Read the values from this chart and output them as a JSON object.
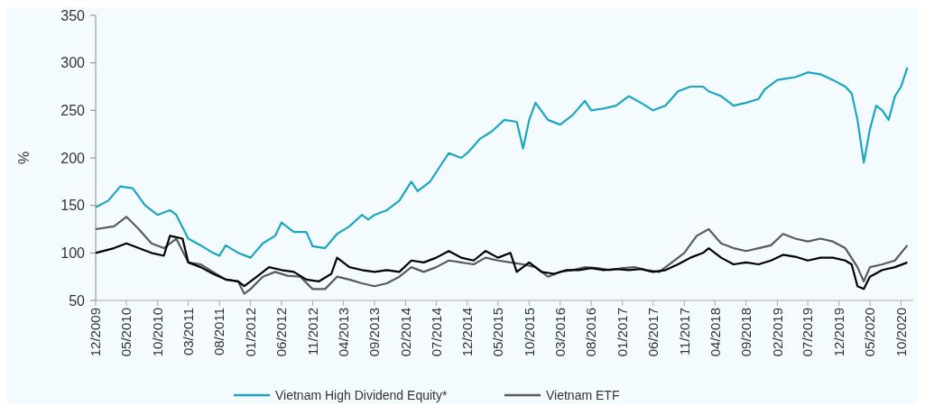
{
  "chart_data": {
    "type": "line",
    "ylabel": "%",
    "ylim": [
      50,
      350
    ],
    "yticks": [
      50,
      100,
      150,
      200,
      250,
      300,
      350
    ],
    "xlim": [
      "2009-12-01",
      "2020-11-30"
    ],
    "xticks": [
      {
        "value": "2009-12",
        "label": "12/2009"
      },
      {
        "value": "2010-05",
        "label": "05/2010"
      },
      {
        "value": "2010-10",
        "label": "10/2010"
      },
      {
        "value": "2011-03",
        "label": "03/2011"
      },
      {
        "value": "2011-08",
        "label": "08/2011"
      },
      {
        "value": "2012-01",
        "label": "01/2012"
      },
      {
        "value": "2012-06",
        "label": "06/2012"
      },
      {
        "value": "2012-11",
        "label": "11/2012"
      },
      {
        "value": "2013-04",
        "label": "04/2013"
      },
      {
        "value": "2013-09",
        "label": "09/2013"
      },
      {
        "value": "2014-02",
        "label": "02/2014"
      },
      {
        "value": "2014-07",
        "label": "07/2014"
      },
      {
        "value": "2014-12",
        "label": "12/2014"
      },
      {
        "value": "2015-05",
        "label": "05/2015"
      },
      {
        "value": "2015-10",
        "label": "10/2015"
      },
      {
        "value": "2016-03",
        "label": "03/2016"
      },
      {
        "value": "2016-08",
        "label": "08/2016"
      },
      {
        "value": "2017-01",
        "label": "01/2017"
      },
      {
        "value": "2017-06",
        "label": "06/2017"
      },
      {
        "value": "2017-11",
        "label": "11/2017"
      },
      {
        "value": "2018-04",
        "label": "04/2018"
      },
      {
        "value": "2018-09",
        "label": "09/2018"
      },
      {
        "value": "2019-02",
        "label": "02/2019"
      },
      {
        "value": "2019-07",
        "label": "07/2019"
      },
      {
        "value": "2019-12",
        "label": "12/2019"
      },
      {
        "value": "2020-05",
        "label": "05/2020"
      },
      {
        "value": "2020-10",
        "label": "10/2020"
      }
    ],
    "grid": false,
    "legend": "bottom",
    "line_style": "solid",
    "marker": "none",
    "series": [
      {
        "name": "Vietnam High Dividend Equity*",
        "color": "#1aa6c0",
        "x": [
          "2009-12",
          "2010-02",
          "2010-04",
          "2010-06",
          "2010-08",
          "2010-10",
          "2010-12",
          "2011-01",
          "2011-03",
          "2011-05",
          "2011-07",
          "2011-08",
          "2011-09",
          "2011-11",
          "2012-01",
          "2012-03",
          "2012-05",
          "2012-06",
          "2012-08",
          "2012-10",
          "2012-11",
          "2013-01",
          "2013-03",
          "2013-05",
          "2013-07",
          "2013-08",
          "2013-09",
          "2013-11",
          "2014-01",
          "2014-03",
          "2014-04",
          "2014-06",
          "2014-08",
          "2014-09",
          "2014-11",
          "2014-12",
          "2015-02",
          "2015-04",
          "2015-06",
          "2015-08",
          "2015-09",
          "2015-10",
          "2015-11",
          "2016-01",
          "2016-03",
          "2016-05",
          "2016-07",
          "2016-08",
          "2016-10",
          "2016-12",
          "2017-02",
          "2017-04",
          "2017-06",
          "2017-08",
          "2017-10",
          "2017-12",
          "2018-02",
          "2018-03",
          "2018-05",
          "2018-07",
          "2018-09",
          "2018-11",
          "2018-12",
          "2019-02",
          "2019-05",
          "2019-07",
          "2019-09",
          "2019-11",
          "2020-01",
          "2020-02",
          "2020-03",
          "2020-04",
          "2020-05",
          "2020-06",
          "2020-07",
          "2020-08",
          "2020-09",
          "2020-10",
          "2020-11"
        ],
        "values": [
          148,
          155,
          170,
          168,
          150,
          140,
          145,
          140,
          115,
          108,
          100,
          97,
          108,
          100,
          95,
          110,
          118,
          132,
          122,
          122,
          107,
          105,
          120,
          128,
          140,
          135,
          140,
          145,
          155,
          175,
          165,
          175,
          195,
          205,
          200,
          205,
          220,
          228,
          240,
          238,
          210,
          240,
          258,
          240,
          235,
          245,
          260,
          250,
          252,
          255,
          265,
          258,
          250,
          255,
          270,
          275,
          275,
          270,
          265,
          255,
          258,
          262,
          272,
          282,
          285,
          290,
          288,
          282,
          275,
          268,
          240,
          195,
          230,
          255,
          250,
          240,
          265,
          275,
          295
        ]
      },
      {
        "name": "Vietnam ETF",
        "color": "#5a5a5a",
        "x": [
          "2009-12",
          "2010-03",
          "2010-05",
          "2010-07",
          "2010-09",
          "2010-11",
          "2011-01",
          "2011-03",
          "2011-05",
          "2011-07",
          "2011-09",
          "2011-11",
          "2011-12",
          "2012-01",
          "2012-03",
          "2012-05",
          "2012-07",
          "2012-09",
          "2012-11",
          "2013-01",
          "2013-03",
          "2013-05",
          "2013-07",
          "2013-09",
          "2013-11",
          "2014-01",
          "2014-03",
          "2014-05",
          "2014-07",
          "2014-09",
          "2014-11",
          "2015-01",
          "2015-03",
          "2015-05",
          "2015-07",
          "2015-09",
          "2015-11",
          "2016-01",
          "2016-03",
          "2016-05",
          "2016-07",
          "2016-09",
          "2016-11",
          "2017-01",
          "2017-03",
          "2017-05",
          "2017-07",
          "2017-09",
          "2017-11",
          "2018-01",
          "2018-03",
          "2018-05",
          "2018-07",
          "2018-09",
          "2018-11",
          "2019-01",
          "2019-03",
          "2019-05",
          "2019-07",
          "2019-09",
          "2019-11",
          "2020-01",
          "2020-03",
          "2020-04",
          "2020-05",
          "2020-07",
          "2020-09",
          "2020-11"
        ],
        "values": [
          125,
          128,
          138,
          125,
          110,
          105,
          115,
          90,
          88,
          80,
          72,
          70,
          57,
          62,
          75,
          80,
          76,
          75,
          62,
          62,
          75,
          72,
          68,
          65,
          68,
          75,
          85,
          80,
          85,
          92,
          90,
          88,
          95,
          92,
          90,
          88,
          85,
          75,
          80,
          82,
          85,
          84,
          82,
          84,
          85,
          82,
          80,
          90,
          100,
          118,
          125,
          110,
          105,
          102,
          105,
          108,
          120,
          115,
          112,
          115,
          112,
          105,
          85,
          70,
          85,
          88,
          92,
          108
        ]
      },
      {
        "color": "#000000",
        "x": [
          "2009-12",
          "2010-03",
          "2010-05",
          "2010-07",
          "2010-09",
          "2010-11",
          "2010-12",
          "2011-02",
          "2011-03",
          "2011-05",
          "2011-07",
          "2011-09",
          "2011-11",
          "2011-12",
          "2012-02",
          "2012-04",
          "2012-06",
          "2012-08",
          "2012-10",
          "2012-12",
          "2013-02",
          "2013-03",
          "2013-05",
          "2013-07",
          "2013-09",
          "2013-11",
          "2014-01",
          "2014-03",
          "2014-05",
          "2014-07",
          "2014-09",
          "2014-11",
          "2015-01",
          "2015-03",
          "2015-05",
          "2015-07",
          "2015-08",
          "2015-10",
          "2015-12",
          "2016-02",
          "2016-04",
          "2016-06",
          "2016-08",
          "2016-10",
          "2016-12",
          "2017-02",
          "2017-04",
          "2017-06",
          "2017-08",
          "2017-10",
          "2017-12",
          "2018-02",
          "2018-03",
          "2018-05",
          "2018-07",
          "2018-09",
          "2018-11",
          "2019-01",
          "2019-03",
          "2019-05",
          "2019-07",
          "2019-09",
          "2019-11",
          "2020-01",
          "2020-02",
          "2020-03",
          "2020-04",
          "2020-05",
          "2020-07",
          "2020-09",
          "2020-11"
        ],
        "values": [
          100,
          105,
          110,
          105,
          100,
          97,
          118,
          115,
          90,
          85,
          78,
          72,
          70,
          65,
          75,
          85,
          82,
          80,
          72,
          70,
          78,
          95,
          85,
          82,
          80,
          82,
          80,
          92,
          90,
          95,
          102,
          95,
          92,
          102,
          95,
          100,
          80,
          90,
          80,
          78,
          82,
          82,
          84,
          82,
          83,
          82,
          83,
          80,
          82,
          88,
          95,
          100,
          105,
          95,
          88,
          90,
          88,
          92,
          98,
          96,
          92,
          95,
          95,
          92,
          88,
          65,
          62,
          75,
          82,
          85,
          90
        ]
      }
    ]
  }
}
